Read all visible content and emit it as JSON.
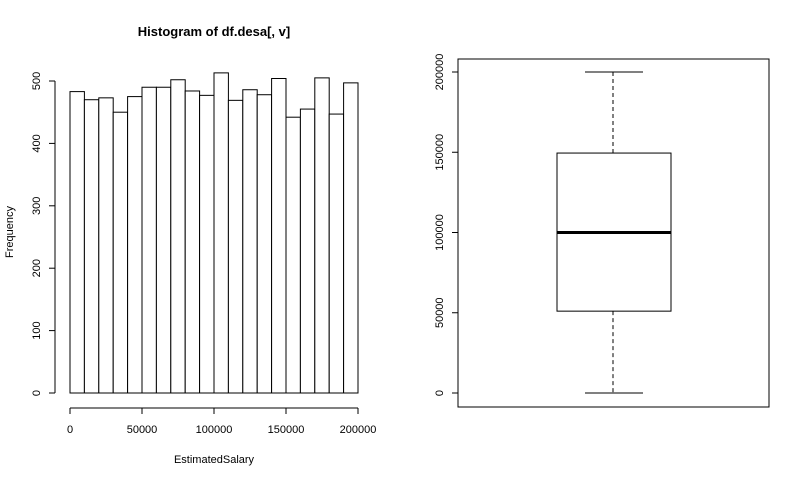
{
  "chart_data": [
    {
      "type": "bar",
      "subtype": "histogram",
      "title": "Histogram of df.desa[, v]",
      "xlabel": "EstimatedSalary",
      "ylabel": "Frequency",
      "bin_width": 10000,
      "bin_edges": [
        0,
        10000,
        20000,
        30000,
        40000,
        50000,
        60000,
        70000,
        80000,
        90000,
        100000,
        110000,
        120000,
        130000,
        140000,
        150000,
        160000,
        170000,
        180000,
        190000,
        200000
      ],
      "values": [
        483,
        470,
        473,
        450,
        475,
        490,
        490,
        502,
        484,
        477,
        513,
        469,
        486,
        478,
        504,
        442,
        455,
        505,
        447,
        497
      ],
      "xlim": [
        0,
        200000
      ],
      "ylim": [
        0,
        520
      ],
      "xticks": [
        0,
        50000,
        100000,
        150000,
        200000
      ],
      "xtick_labels": [
        "0",
        "50000",
        "100000",
        "150000",
        "200000"
      ],
      "yticks": [
        0,
        100,
        200,
        300,
        400,
        500
      ],
      "ytick_labels": [
        "0",
        "100",
        "200",
        "300",
        "400",
        "500"
      ],
      "grid": false
    },
    {
      "type": "box",
      "title": "",
      "ylabel": "",
      "whisker_low": 0,
      "q1": 51000,
      "median": 100000,
      "q3": 149500,
      "whisker_high": 200000,
      "ylim": [
        -8000,
        208000
      ],
      "yticks": [
        0,
        50000,
        100000,
        150000,
        200000
      ],
      "ytick_labels": [
        "0",
        "50000",
        "100000",
        "150000",
        "200000"
      ],
      "grid": false
    }
  ]
}
